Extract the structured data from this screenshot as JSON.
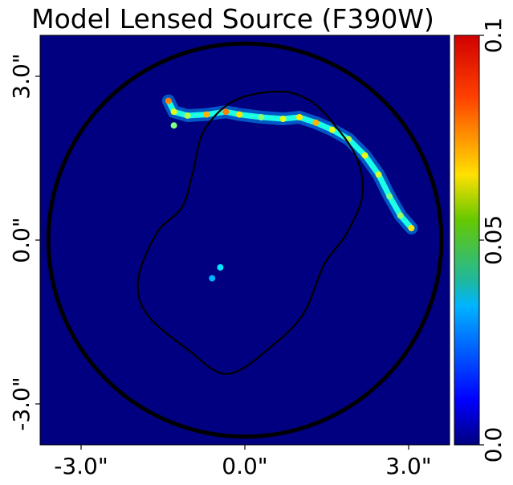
{
  "chart_data": {
    "type": "heatmap",
    "title": "Model Lensed Source (F390W)",
    "xlabel": "",
    "ylabel": "",
    "x_tick_labels": [
      "-3.0\"",
      "0.0\"",
      "3.0\""
    ],
    "x_tick_values": [
      -3.0,
      0.0,
      3.0
    ],
    "y_tick_labels": [
      "3.0\"",
      "0.0\"",
      "-3.0\""
    ],
    "y_tick_values": [
      3.0,
      0.0,
      -3.0
    ],
    "xlim": [
      -3.75,
      3.75
    ],
    "ylim": [
      -3.75,
      3.75
    ],
    "colorbar": {
      "colormap": "jet",
      "range": [
        0.0,
        0.1
      ],
      "tick_labels": [
        "0.0",
        "0.05",
        "0.1"
      ],
      "tick_values": [
        0.0,
        0.05,
        0.1
      ]
    },
    "mask_circle_radius": 3.6,
    "background_color": "#000080",
    "caustic_curve": [
      [
        0.63,
        2.72
      ],
      [
        1.2,
        2.55
      ],
      [
        1.65,
        2.1
      ],
      [
        2.05,
        1.5
      ],
      [
        2.15,
        0.8
      ],
      [
        1.85,
        0.1
      ],
      [
        1.45,
        -0.45
      ],
      [
        1.1,
        -1.3
      ],
      [
        0.6,
        -1.85
      ],
      [
        -0.3,
        -2.45
      ],
      [
        -1.05,
        -2.0
      ],
      [
        -1.8,
        -1.35
      ],
      [
        -1.95,
        -0.7
      ],
      [
        -1.6,
        0.15
      ],
      [
        -1.15,
        0.6
      ],
      [
        -0.95,
        1.25
      ],
      [
        -0.75,
        2.0
      ],
      [
        -0.2,
        2.55
      ]
    ],
    "arc_knots": [
      {
        "x": -1.4,
        "y": 2.55,
        "v": 0.075
      },
      {
        "x": -1.3,
        "y": 2.35,
        "v": 0.06
      },
      {
        "x": -1.05,
        "y": 2.28,
        "v": 0.055
      },
      {
        "x": -0.7,
        "y": 2.3,
        "v": 0.07
      },
      {
        "x": -0.35,
        "y": 2.35,
        "v": 0.075
      },
      {
        "x": -0.1,
        "y": 2.3,
        "v": 0.065
      },
      {
        "x": 0.3,
        "y": 2.25,
        "v": 0.05
      },
      {
        "x": 0.7,
        "y": 2.22,
        "v": 0.06
      },
      {
        "x": 1.0,
        "y": 2.25,
        "v": 0.065
      },
      {
        "x": 1.3,
        "y": 2.15,
        "v": 0.07
      },
      {
        "x": 1.6,
        "y": 2.02,
        "v": 0.06
      },
      {
        "x": 1.9,
        "y": 1.85,
        "v": 0.055
      },
      {
        "x": 2.2,
        "y": 1.55,
        "v": 0.06
      },
      {
        "x": 2.45,
        "y": 1.2,
        "v": 0.058
      },
      {
        "x": 2.65,
        "y": 0.8,
        "v": 0.05
      },
      {
        "x": 2.85,
        "y": 0.45,
        "v": 0.052
      },
      {
        "x": 3.05,
        "y": 0.22,
        "v": 0.065
      },
      {
        "x": -1.3,
        "y": 2.1,
        "v": 0.05
      },
      {
        "x": -0.45,
        "y": -0.5,
        "v": 0.035
      },
      {
        "x": -0.6,
        "y": -0.7,
        "v": 0.03
      }
    ]
  }
}
